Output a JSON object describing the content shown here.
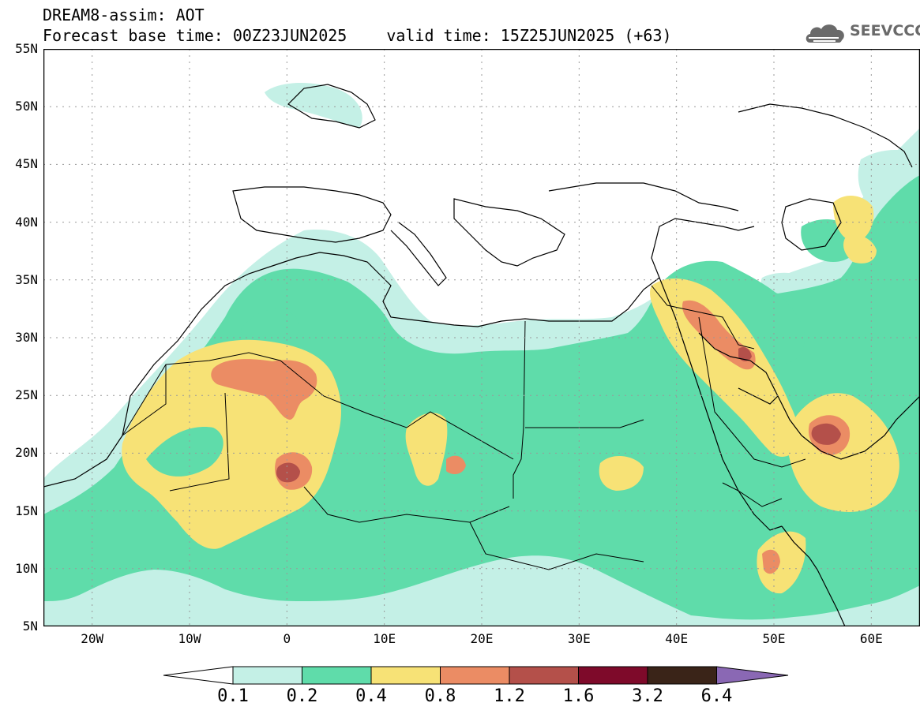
{
  "title": {
    "line1": "DREAM8-assim: AOT",
    "base_time": "Forecast base time: 00Z23JUN2025",
    "valid_time": "valid time: 15Z25JUN2025 (+63)"
  },
  "logo": {
    "text": "SEEVCCC",
    "icon": "cloud-icon"
  },
  "map": {
    "lon_range": [
      -25,
      65
    ],
    "lat_range": [
      5,
      55
    ],
    "lat_labels": [
      "55N",
      "50N",
      "45N",
      "40N",
      "35N",
      "30N",
      "25N",
      "20N",
      "15N",
      "10N",
      "5N"
    ],
    "lat_values": [
      55,
      50,
      45,
      40,
      35,
      30,
      25,
      20,
      15,
      10,
      5
    ],
    "lon_labels": [
      "20W",
      "10W",
      "0",
      "10E",
      "20E",
      "30E",
      "40E",
      "50E",
      "60E"
    ],
    "lon_values": [
      -20,
      -10,
      0,
      10,
      20,
      30,
      40,
      50,
      60
    ]
  },
  "colorbar": {
    "levels": [
      "0.1",
      "0.2",
      "0.4",
      "0.8",
      "1.2",
      "1.6",
      "3.2",
      "6.4"
    ],
    "colors": [
      "#c4f0e6",
      "#5fdcaa",
      "#f7e276",
      "#eb8c64",
      "#b4504a",
      "#7e0a2a",
      "#3a2418",
      "#8a68b4"
    ]
  }
}
